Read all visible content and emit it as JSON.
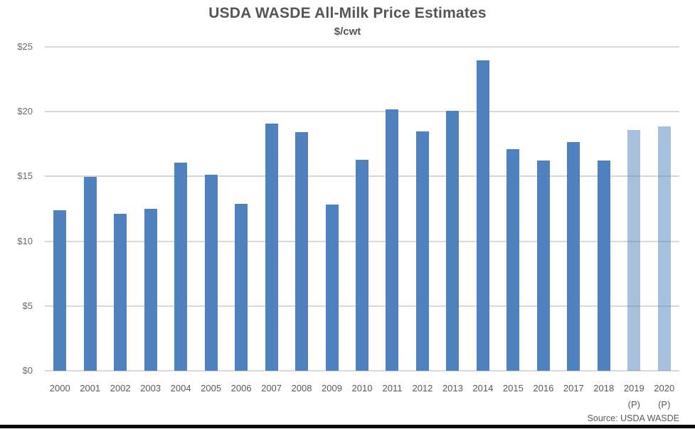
{
  "title": "USDA WASDE All-Milk Price Estimates",
  "subtitle": "$/cwt",
  "source_note": "Source: USDA WASDE",
  "colors": {
    "bar": "#4e81bd",
    "bar_projected": "rgba(79,129,189,0.5)",
    "gridline": "#d9d9d9",
    "text": "#595959"
  },
  "chart_data": {
    "type": "bar",
    "title": "USDA WASDE All-Milk Price Estimates",
    "ylabel": "$/cwt",
    "xlabel": "",
    "ylim": [
      0,
      25
    ],
    "grid": true,
    "legend": "none",
    "y_ticks": [
      0,
      5,
      10,
      15,
      20,
      25
    ],
    "y_tick_labels": [
      "$0",
      "$5",
      "$10",
      "$15",
      "$20",
      "$25"
    ],
    "categories": [
      "2000",
      "2001",
      "2002",
      "2003",
      "2004",
      "2005",
      "2006",
      "2007",
      "2008",
      "2009",
      "2010",
      "2011",
      "2012",
      "2013",
      "2014",
      "2015",
      "2016",
      "2017",
      "2018",
      "2019",
      "2020"
    ],
    "values": [
      12.4,
      14.95,
      12.1,
      12.5,
      16.05,
      15.15,
      12.9,
      19.1,
      18.4,
      12.85,
      16.3,
      20.15,
      18.5,
      20.05,
      23.95,
      17.1,
      16.25,
      17.65,
      16.25,
      18.6,
      18.85
    ],
    "projected_categories": [
      "2019",
      "2020"
    ],
    "projected_marker": "(P)",
    "source": "Source: USDA WASDE"
  }
}
